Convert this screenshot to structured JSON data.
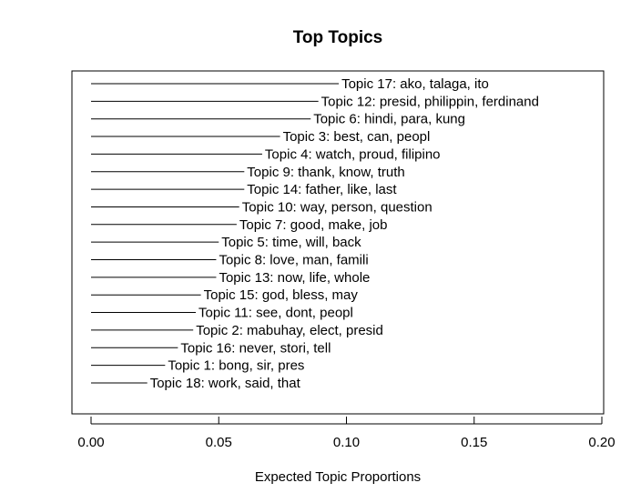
{
  "chart_data": {
    "type": "bar",
    "orientation": "horizontal",
    "title": "Top Topics",
    "xlabel": "Expected Topic Proportions",
    "ylabel": "",
    "xlim": [
      0.0,
      0.2
    ],
    "xticks": [
      "0.00",
      "0.05",
      "0.10",
      "0.15",
      "0.20"
    ],
    "grid": false,
    "categories": [
      "Topic 17: ako, talaga, ito",
      "Topic 12: presid, philippin, ferdinand",
      "Topic 6: hindi, para, kung",
      "Topic 3: best, can, peopl",
      "Topic 4: watch, proud, filipino",
      "Topic 9: thank, know, truth",
      "Topic 14: father, like, last",
      "Topic 10: way, person, question",
      "Topic 7: good, make, job",
      "Topic 5: time, will, back",
      "Topic 8: love, man, famili",
      "Topic 13: now, life, whole",
      "Topic 15: god, bless, may",
      "Topic 11: see, dont, peopl",
      "Topic 2: mabuhay, elect, presid",
      "Topic 16: never, stori, tell",
      "Topic 1: bong, sir, pres",
      "Topic 18: work, said, that"
    ],
    "values": [
      0.097,
      0.089,
      0.086,
      0.074,
      0.067,
      0.06,
      0.06,
      0.058,
      0.057,
      0.05,
      0.049,
      0.049,
      0.043,
      0.041,
      0.04,
      0.034,
      0.029,
      0.022
    ]
  }
}
